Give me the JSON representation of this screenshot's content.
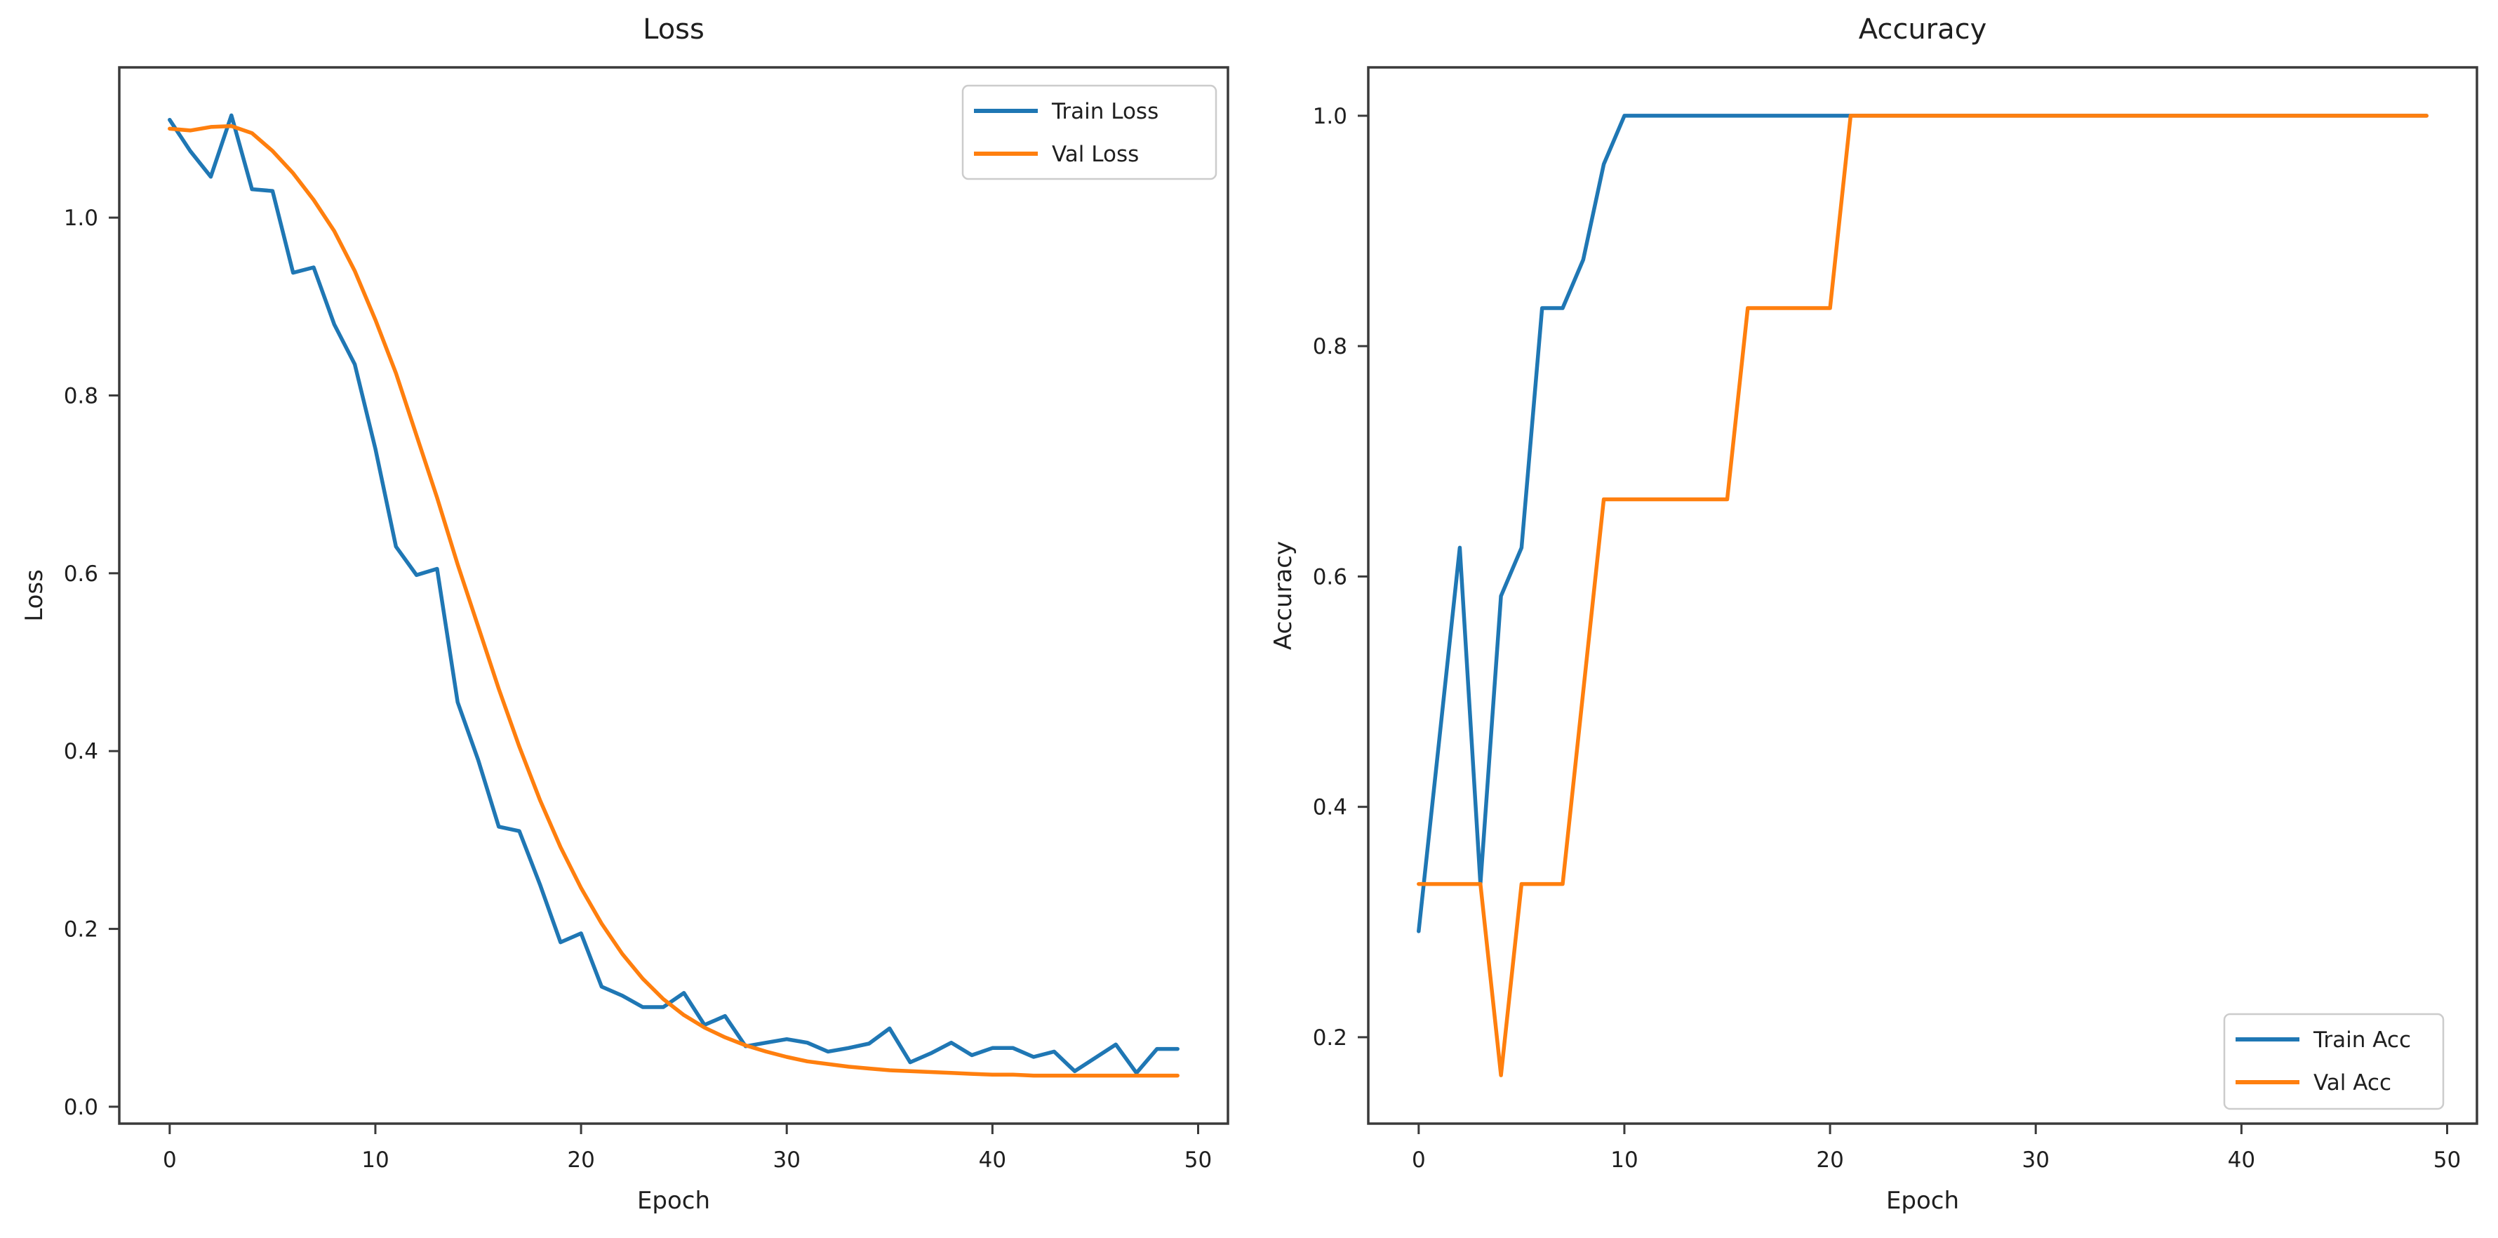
{
  "figure": {
    "background": "#ffffff",
    "text_color": "#1f1f1f",
    "spine_color": "#3a3a3a",
    "legend_border_color": "#cccccc",
    "train_color": "#1f77b4",
    "val_color": "#ff7f0e"
  },
  "chart_data": [
    {
      "type": "line",
      "title": "Loss",
      "xlabel": "Epoch",
      "ylabel": "Loss",
      "grid": false,
      "legend_position": "upper right",
      "xlim": [
        -2.45,
        51.45
      ],
      "ylim": [
        -0.019,
        1.169
      ],
      "x_ticks": [
        0,
        10,
        20,
        30,
        40,
        50
      ],
      "x_tick_labels": [
        "0",
        "10",
        "20",
        "30",
        "40",
        "50"
      ],
      "y_ticks": [
        0.0,
        0.2,
        0.4,
        0.6,
        0.8,
        1.0
      ],
      "y_tick_labels": [
        "0.0",
        "0.2",
        "0.4",
        "0.6",
        "0.8",
        "1.0"
      ],
      "x": [
        0,
        1,
        2,
        3,
        4,
        5,
        6,
        7,
        8,
        9,
        10,
        11,
        12,
        13,
        14,
        15,
        16,
        17,
        18,
        19,
        20,
        21,
        22,
        23,
        24,
        25,
        26,
        27,
        28,
        29,
        30,
        31,
        32,
        33,
        34,
        35,
        36,
        37,
        38,
        39,
        40,
        41,
        42,
        43,
        44,
        45,
        46,
        47,
        48,
        49
      ],
      "series": [
        {
          "name": "Train Loss",
          "color": "#1f77b4",
          "values": [
            1.11,
            1.075,
            1.046,
            1.115,
            1.032,
            1.03,
            0.938,
            0.944,
            0.88,
            0.835,
            0.74,
            0.63,
            0.598,
            0.605,
            0.455,
            0.39,
            0.315,
            0.31,
            0.25,
            0.185,
            0.195,
            0.135,
            0.125,
            0.112,
            0.112,
            0.128,
            0.092,
            0.102,
            0.068,
            0.072,
            0.076,
            0.072,
            0.062,
            0.066,
            0.071,
            0.088,
            0.05,
            0.06,
            0.072,
            0.058,
            0.066,
            0.066,
            0.056,
            0.062,
            0.04,
            0.055,
            0.07,
            0.038,
            0.065,
            0.065
          ]
        },
        {
          "name": "Val Loss",
          "color": "#ff7f0e",
          "values": [
            1.1,
            1.098,
            1.102,
            1.103,
            1.095,
            1.075,
            1.05,
            1.02,
            0.985,
            0.94,
            0.885,
            0.825,
            0.755,
            0.685,
            0.61,
            0.54,
            0.47,
            0.405,
            0.345,
            0.292,
            0.246,
            0.206,
            0.172,
            0.144,
            0.121,
            0.103,
            0.089,
            0.078,
            0.069,
            0.062,
            0.056,
            0.051,
            0.048,
            0.045,
            0.043,
            0.041,
            0.04,
            0.039,
            0.038,
            0.037,
            0.036,
            0.036,
            0.035,
            0.035,
            0.035,
            0.035,
            0.035,
            0.035,
            0.035,
            0.035
          ]
        }
      ]
    },
    {
      "type": "line",
      "title": "Accuracy",
      "xlabel": "Epoch",
      "ylabel": "Accuracy",
      "grid": false,
      "legend_position": "lower right",
      "xlim": [
        -2.45,
        51.45
      ],
      "ylim": [
        0.125,
        1.042
      ],
      "x_ticks": [
        0,
        10,
        20,
        30,
        40,
        50
      ],
      "x_tick_labels": [
        "0",
        "10",
        "20",
        "30",
        "40",
        "50"
      ],
      "y_ticks": [
        0.2,
        0.4,
        0.6,
        0.8,
        1.0
      ],
      "y_tick_labels": [
        "0.2",
        "0.4",
        "0.6",
        "0.8",
        "1.0"
      ],
      "x": [
        0,
        1,
        2,
        3,
        4,
        5,
        6,
        7,
        8,
        9,
        10,
        11,
        12,
        13,
        14,
        15,
        16,
        17,
        18,
        19,
        20,
        21,
        22,
        23,
        24,
        25,
        26,
        27,
        28,
        29,
        30,
        31,
        32,
        33,
        34,
        35,
        36,
        37,
        38,
        39,
        40,
        41,
        42,
        43,
        44,
        45,
        46,
        47,
        48,
        49
      ],
      "series": [
        {
          "name": "Train Acc",
          "color": "#1f77b4",
          "values": [
            0.292,
            0.458,
            0.625,
            0.333,
            0.583,
            0.625,
            0.833,
            0.833,
            0.875,
            0.958,
            1.0,
            1.0,
            1.0,
            1.0,
            1.0,
            1.0,
            1.0,
            1.0,
            1.0,
            1.0,
            1.0,
            1.0,
            1.0,
            1.0,
            1.0,
            1.0,
            1.0,
            1.0,
            1.0,
            1.0,
            1.0,
            1.0,
            1.0,
            1.0,
            1.0,
            1.0,
            1.0,
            1.0,
            1.0,
            1.0,
            1.0,
            1.0,
            1.0,
            1.0,
            1.0,
            1.0,
            1.0,
            1.0,
            1.0,
            1.0
          ]
        },
        {
          "name": "Val Acc",
          "color": "#ff7f0e",
          "values": [
            0.333,
            0.333,
            0.333,
            0.333,
            0.167,
            0.333,
            0.333,
            0.333,
            0.5,
            0.667,
            0.667,
            0.667,
            0.667,
            0.667,
            0.667,
            0.667,
            0.833,
            0.833,
            0.833,
            0.833,
            0.833,
            1.0,
            1.0,
            1.0,
            1.0,
            1.0,
            1.0,
            1.0,
            1.0,
            1.0,
            1.0,
            1.0,
            1.0,
            1.0,
            1.0,
            1.0,
            1.0,
            1.0,
            1.0,
            1.0,
            1.0,
            1.0,
            1.0,
            1.0,
            1.0,
            1.0,
            1.0,
            1.0,
            1.0,
            1.0
          ]
        }
      ]
    }
  ]
}
